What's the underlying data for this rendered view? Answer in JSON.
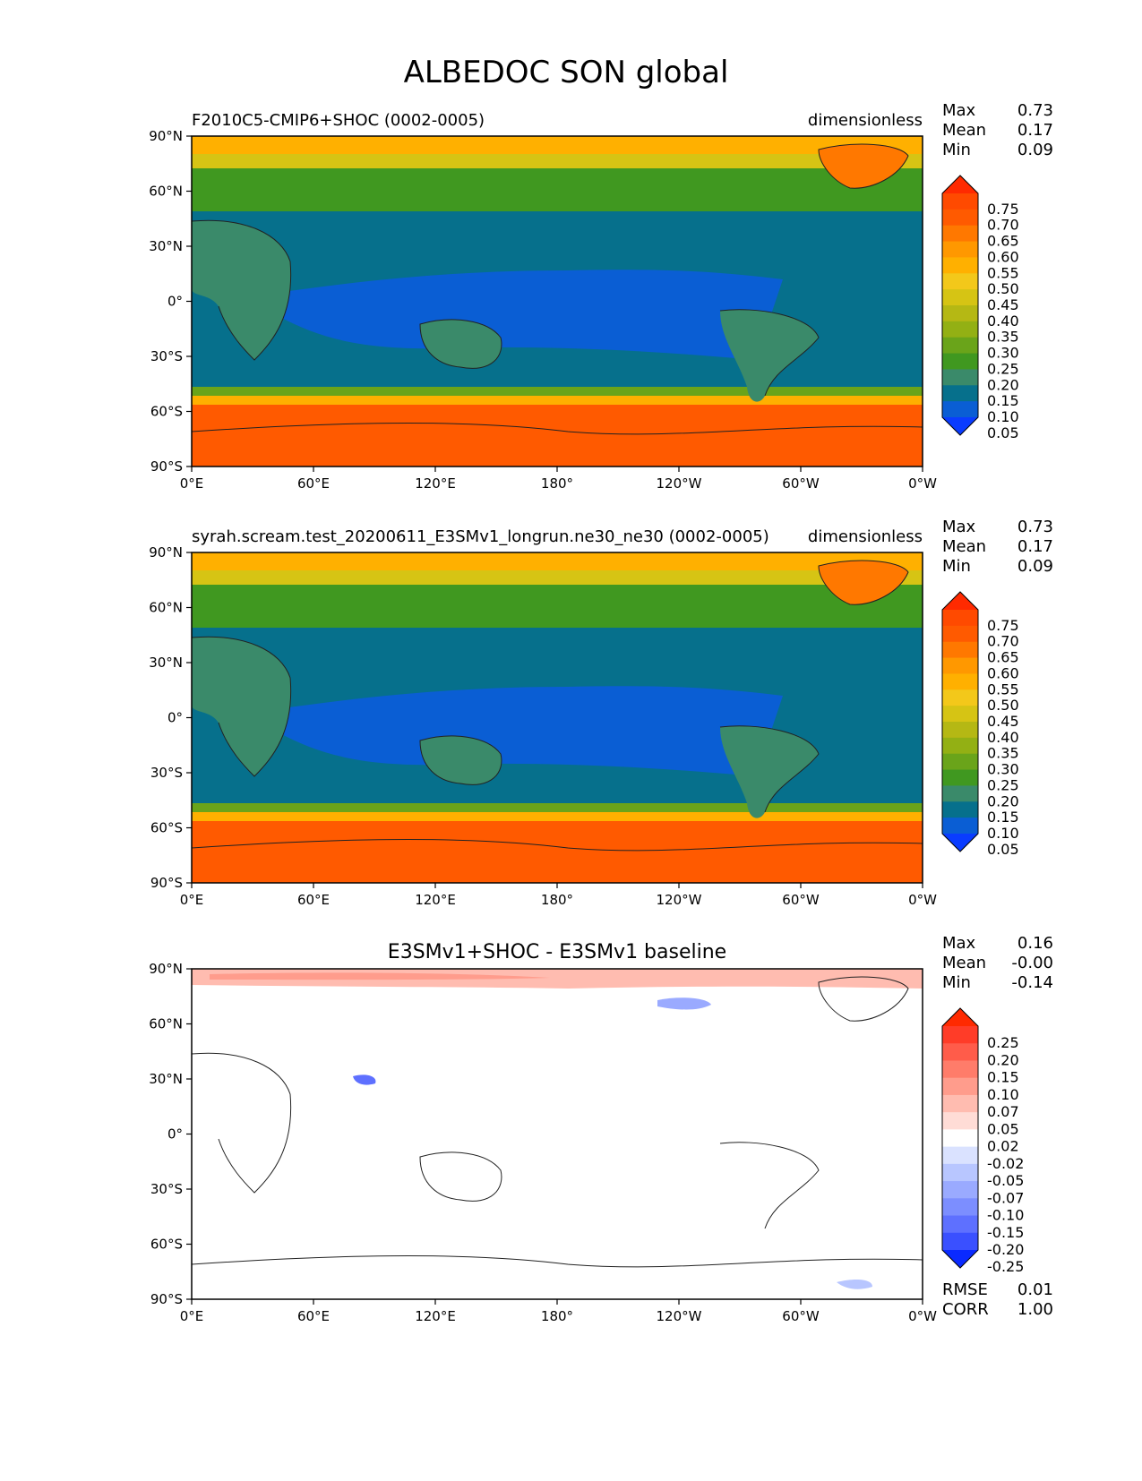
{
  "title": "ALBEDOC SON global",
  "lon_ticks": [
    "0°E",
    "60°E",
    "120°E",
    "180°",
    "120°W",
    "60°W",
    "0°W"
  ],
  "lat_ticks": [
    "90°N",
    "60°N",
    "30°N",
    "0°",
    "30°S",
    "60°S",
    "90°S"
  ],
  "stat_labels": {
    "max": "Max",
    "mean": "Mean",
    "min": "Min",
    "rmse": "RMSE",
    "corr": "CORR"
  },
  "panels": [
    {
      "title_left": "F2010C5-CMIP6+SHOC (0002-0005)",
      "title_right": "dimensionless",
      "title_center": "",
      "stats": {
        "max": "0.73",
        "mean": "0.17",
        "min": "0.09"
      },
      "colorbar": "abs"
    },
    {
      "title_left": "syrah.scream.test_20200611_E3SMv1_longrun.ne30_ne30 (0002-0005)",
      "title_right": "dimensionless",
      "title_center": "",
      "stats": {
        "max": "0.73",
        "mean": "0.17",
        "min": "0.09"
      },
      "colorbar": "abs"
    },
    {
      "title_left": "",
      "title_right": "",
      "title_center": "E3SMv1+SHOC - E3SMv1 baseline",
      "stats": {
        "max": "0.16",
        "mean": "-0.00",
        "min": "-0.14",
        "rmse": "0.01",
        "corr": "1.00"
      },
      "colorbar": "diff"
    }
  ],
  "colorbars": {
    "abs": {
      "labels": [
        "0.75",
        "0.70",
        "0.65",
        "0.60",
        "0.55",
        "0.50",
        "0.45",
        "0.40",
        "0.35",
        "0.30",
        "0.25",
        "0.20",
        "0.15",
        "0.10",
        "0.05"
      ],
      "colors": [
        "#ff2a00",
        "#ff4a00",
        "#ff5a00",
        "#ff7800",
        "#ff9800",
        "#ffb000",
        "#f3c81a",
        "#d6c414",
        "#b5b814",
        "#93b014",
        "#6aa41a",
        "#409820",
        "#3a8a6a",
        "#06708c",
        "#0a5ed4",
        "#0a3cff"
      ]
    },
    "diff": {
      "labels": [
        "0.25",
        "0.20",
        "0.15",
        "0.10",
        "0.07",
        "0.05",
        "0.02",
        "-0.02",
        "-0.05",
        "-0.07",
        "-0.10",
        "-0.15",
        "-0.20",
        "-0.25"
      ],
      "colors": [
        "#ff2a00",
        "#ff3c28",
        "#ff5c4a",
        "#ff7c6a",
        "#ff9c8c",
        "#ffbcb0",
        "#ffdcd6",
        "#ffffff",
        "#dae2ff",
        "#b8c6ff",
        "#9aaaff",
        "#7c8eff",
        "#5e70ff",
        "#3a50ff",
        "#0a2aff"
      ]
    }
  }
}
